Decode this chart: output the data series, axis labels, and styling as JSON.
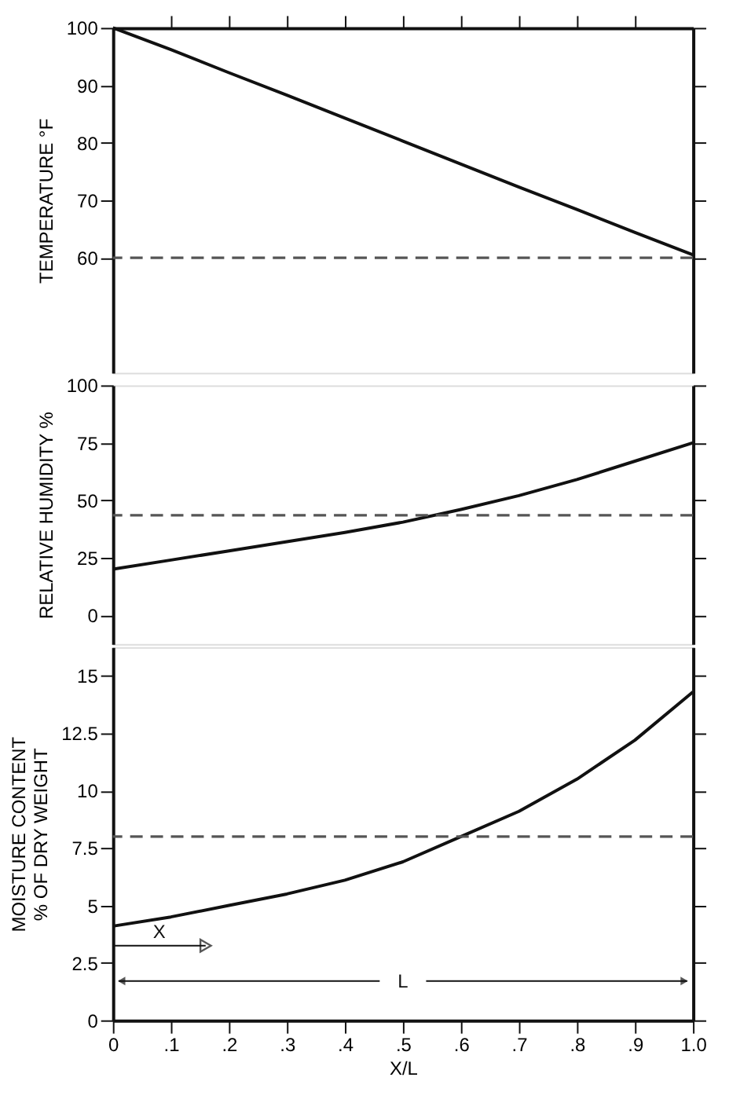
{
  "chart_data": [
    {
      "type": "line",
      "ylabel": "TEMPERATURE °F",
      "x": [
        0,
        0.1,
        0.2,
        0.3,
        0.4,
        0.5,
        0.6,
        0.7,
        0.8,
        0.9,
        1.0
      ],
      "series": [
        {
          "color": "#111111",
          "values": [
            100,
            96.2,
            92.2,
            88.3,
            84.3,
            80.3,
            76.3,
            72.3,
            68.4,
            64.4,
            60.5
          ]
        }
      ],
      "xlim": [
        0,
        1
      ],
      "ylim": [
        40,
        100
      ],
      "yticks": [
        60,
        70,
        80,
        90,
        100
      ],
      "xticks": [
        {
          "value": 0.1,
          "label": null
        },
        {
          "value": 0.2,
          "label": null
        },
        {
          "value": 0.3,
          "label": null
        },
        {
          "value": 0.4,
          "label": null
        },
        {
          "value": 0.5,
          "label": null
        },
        {
          "value": 0.6,
          "label": null
        },
        {
          "value": 0.7,
          "label": null
        },
        {
          "value": 0.8,
          "label": null
        },
        {
          "value": 0.9,
          "label": null
        }
      ],
      "ref_lines": [
        {
          "axis": "y",
          "value": 60,
          "label": null,
          "color": "#555555",
          "line_style": "dashed"
        }
      ],
      "tick_labels": "y",
      "line_style": "solid",
      "marker": "none",
      "grid": false
    },
    {
      "type": "line",
      "ylabel": "RELATIVE HUMIDITY %",
      "x": [
        0,
        0.1,
        0.2,
        0.3,
        0.4,
        0.5,
        0.6,
        0.7,
        0.8,
        0.9,
        1.0
      ],
      "series": [
        {
          "color": "#111111",
          "values": [
            20,
            24,
            28,
            32,
            36,
            40.5,
            46,
            52,
            59,
            67,
            75
          ]
        }
      ],
      "xlim": [
        0,
        1
      ],
      "ylim": [
        -12.5,
        100
      ],
      "yticks": [
        0,
        25,
        50,
        75,
        100
      ],
      "ref_lines": [
        {
          "axis": "y",
          "value": 43.5,
          "label": null,
          "color": "#555555",
          "line_style": "dashed"
        }
      ],
      "tick_labels": "y",
      "line_style": "solid",
      "marker": "none",
      "grid": false
    },
    {
      "type": "line",
      "ylabel": "MOISTURE CONTENT\n% OF DRY WEIGHT",
      "xlabel": "X/L",
      "x": [
        0,
        0.1,
        0.2,
        0.3,
        0.4,
        0.5,
        0.6,
        0.7,
        0.8,
        0.9,
        1.0
      ],
      "series": [
        {
          "color": "#111111",
          "values": [
            4.1,
            4.5,
            5.0,
            5.5,
            6.1,
            6.9,
            8.0,
            9.1,
            10.5,
            12.2,
            14.3
          ]
        }
      ],
      "xlim": [
        0,
        1
      ],
      "ylim": [
        0,
        16.25
      ],
      "yticks": [
        0,
        2.5,
        5,
        7.5,
        10,
        12.5,
        15
      ],
      "xticks": [
        0,
        {
          "value": 0.1,
          "label": ".1"
        },
        {
          "value": 0.2,
          "label": ".2"
        },
        {
          "value": 0.3,
          "label": ".3"
        },
        {
          "value": 0.4,
          "label": ".4"
        },
        {
          "value": 0.5,
          "label": ".5"
        },
        {
          "value": 0.6,
          "label": ".6"
        },
        {
          "value": 0.7,
          "label": ".7"
        },
        {
          "value": 0.8,
          "label": ".8"
        },
        {
          "value": 0.9,
          "label": ".9"
        },
        {
          "value": 1.0,
          "label": "1.0"
        }
      ],
      "ref_lines": [
        {
          "axis": "y",
          "value": 8,
          "label": null,
          "color": "#555555",
          "line_style": "dashed"
        }
      ],
      "annotations": [
        "X",
        "L"
      ],
      "line_style": "solid",
      "marker": "none",
      "grid": false
    }
  ]
}
